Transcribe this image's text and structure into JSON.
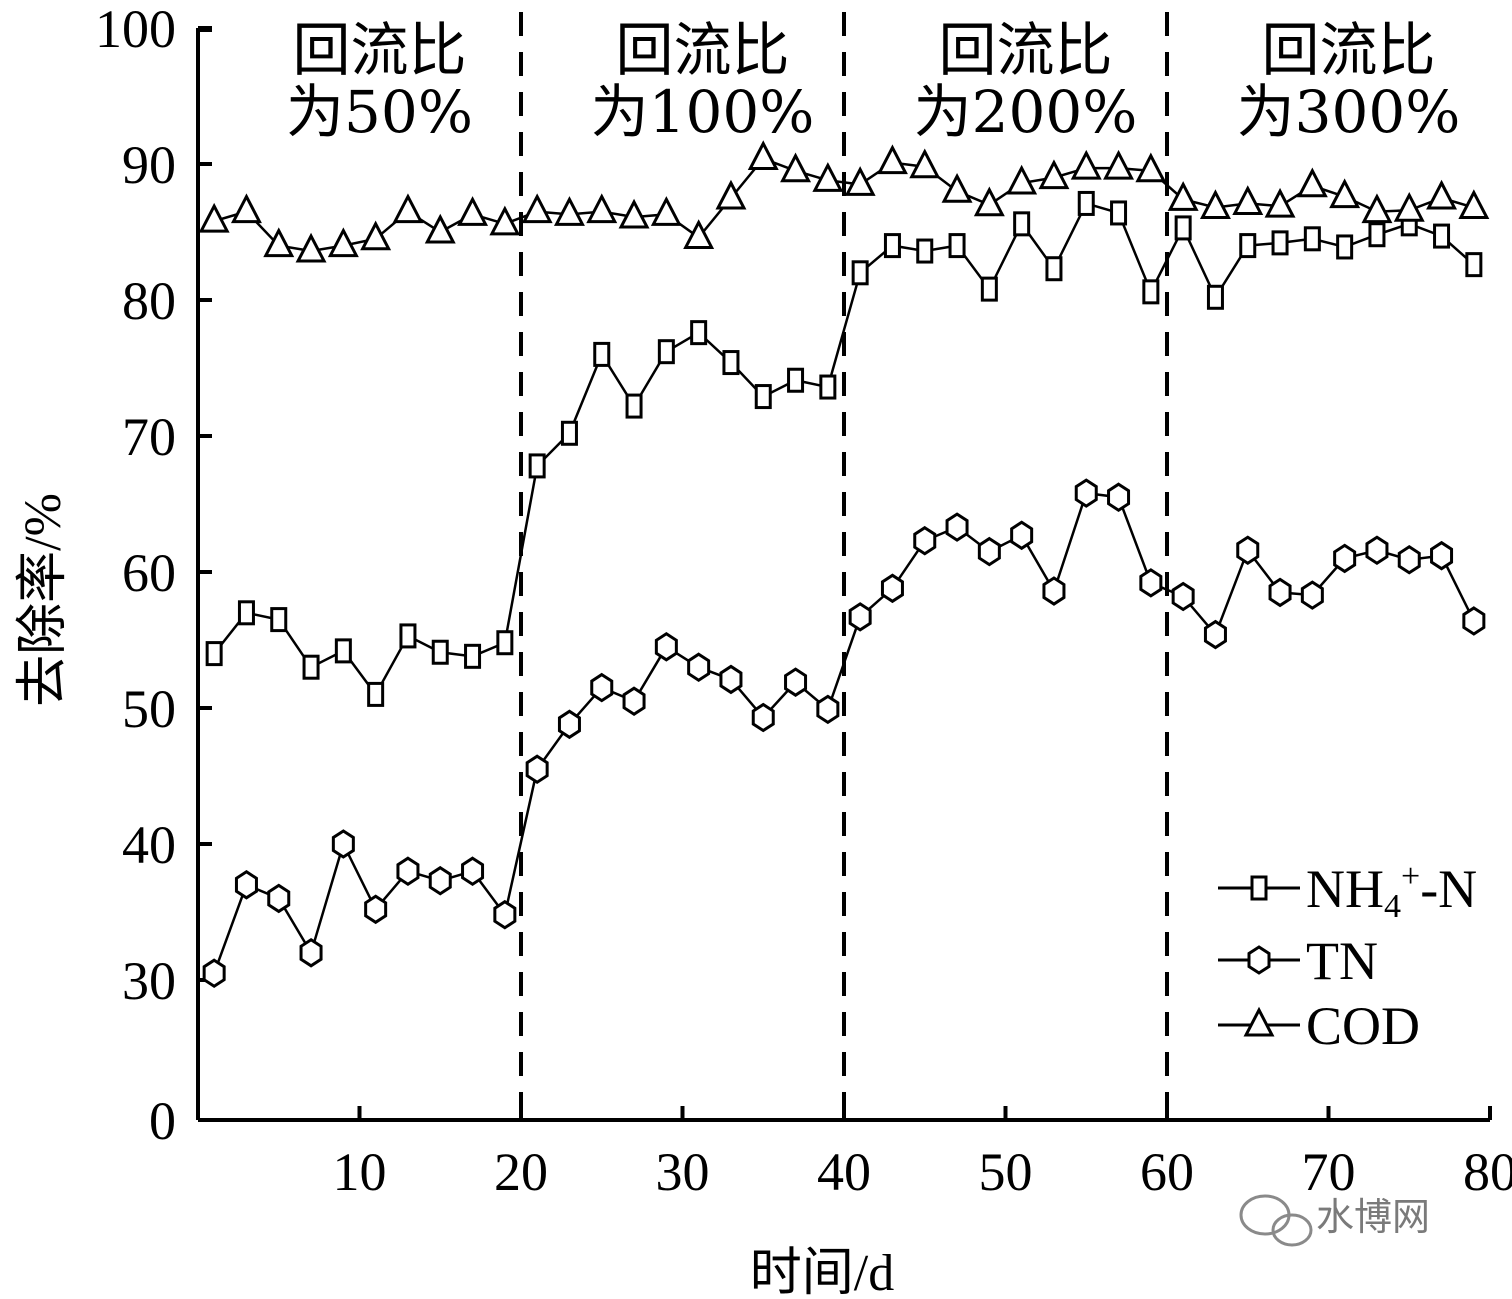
{
  "chart_data": {
    "type": "line",
    "xlabel": "时间/d",
    "ylabel": "去除率/%",
    "xlim": [
      0,
      80
    ],
    "ylim": [
      0,
      100
    ],
    "x_ticks": [
      "10",
      "20",
      "30",
      "40",
      "50",
      "60",
      "70",
      "80"
    ],
    "y_ticks": [
      "0",
      "30",
      "40",
      "50",
      "60",
      "70",
      "80",
      "90",
      "100"
    ],
    "y_axis_break": "between 0 and 30",
    "phase_dividers_x": [
      20,
      40,
      60
    ],
    "phases": [
      {
        "line1": "回流比",
        "line2": "为50%"
      },
      {
        "line1": "回流比",
        "line2": "为100%"
      },
      {
        "line1": "回流比",
        "line2": "为200%"
      },
      {
        "line1": "回流比",
        "line2": "为300%"
      }
    ],
    "legend_position": "bottom-right",
    "series": [
      {
        "name_main": "NH",
        "name_sub": "4",
        "name_sup": "+",
        "name_tail": "-N",
        "marker": "square",
        "x": [
          1,
          3,
          5,
          7,
          9,
          11,
          13,
          15,
          17,
          19,
          21,
          23,
          25,
          27,
          29,
          31,
          33,
          35,
          37,
          39,
          41,
          43,
          45,
          47,
          49,
          51,
          53,
          55,
          57,
          59,
          61,
          63,
          65,
          67,
          69,
          71,
          73,
          75,
          77,
          79
        ],
        "values": [
          54,
          57,
          56.5,
          53,
          54.2,
          51,
          55.3,
          54.1,
          53.8,
          54.8,
          67.8,
          70.2,
          76,
          72.2,
          76.2,
          77.6,
          75.4,
          72.9,
          74.1,
          73.6,
          82,
          84,
          83.6,
          84,
          80.8,
          85.6,
          82.3,
          87.1,
          86.4,
          80.6,
          85.3,
          80.2,
          84,
          84.2,
          84.5,
          83.9,
          84.8,
          85.6,
          84.7,
          82.6
        ]
      },
      {
        "name": "TN",
        "marker": "hexagon",
        "x": [
          1,
          3,
          5,
          7,
          9,
          11,
          13,
          15,
          17,
          19,
          21,
          23,
          25,
          27,
          29,
          31,
          33,
          35,
          37,
          39,
          41,
          43,
          45,
          47,
          49,
          51,
          53,
          55,
          57,
          59,
          61,
          63,
          65,
          67,
          69,
          71,
          73,
          75,
          77,
          79
        ],
        "values": [
          30.5,
          37,
          36,
          32,
          40,
          35.2,
          38,
          37.3,
          38,
          34.8,
          45.5,
          48.8,
          51.5,
          50.5,
          54.5,
          53,
          52.1,
          49.3,
          51.9,
          49.9,
          56.7,
          58.8,
          62.3,
          63.3,
          61.5,
          62.7,
          58.6,
          65.8,
          65.5,
          59.2,
          58.2,
          55.4,
          61.6,
          58.5,
          58.3,
          61,
          61.6,
          60.9,
          61.2,
          56.4
        ]
      },
      {
        "name": "COD",
        "marker": "triangle",
        "x": [
          1,
          3,
          5,
          7,
          9,
          11,
          13,
          15,
          17,
          19,
          21,
          23,
          25,
          27,
          29,
          31,
          33,
          35,
          37,
          39,
          41,
          43,
          45,
          47,
          49,
          51,
          53,
          55,
          57,
          59,
          61,
          63,
          65,
          67,
          69,
          71,
          73,
          75,
          77,
          79
        ],
        "values": [
          85.8,
          86.5,
          84,
          83.6,
          84,
          84.5,
          86.5,
          85,
          86.3,
          85.6,
          86.5,
          86.3,
          86.5,
          86.1,
          86.3,
          84.6,
          87.5,
          90.4,
          89.5,
          88.8,
          88.5,
          90.1,
          89.8,
          88,
          87,
          88.6,
          89,
          89.7,
          89.7,
          89.5,
          87.4,
          86.8,
          87.1,
          86.9,
          88.4,
          87.6,
          86.5,
          86.6,
          87.5,
          86.8
        ]
      }
    ]
  },
  "watermark": {
    "text": "水博网"
  }
}
